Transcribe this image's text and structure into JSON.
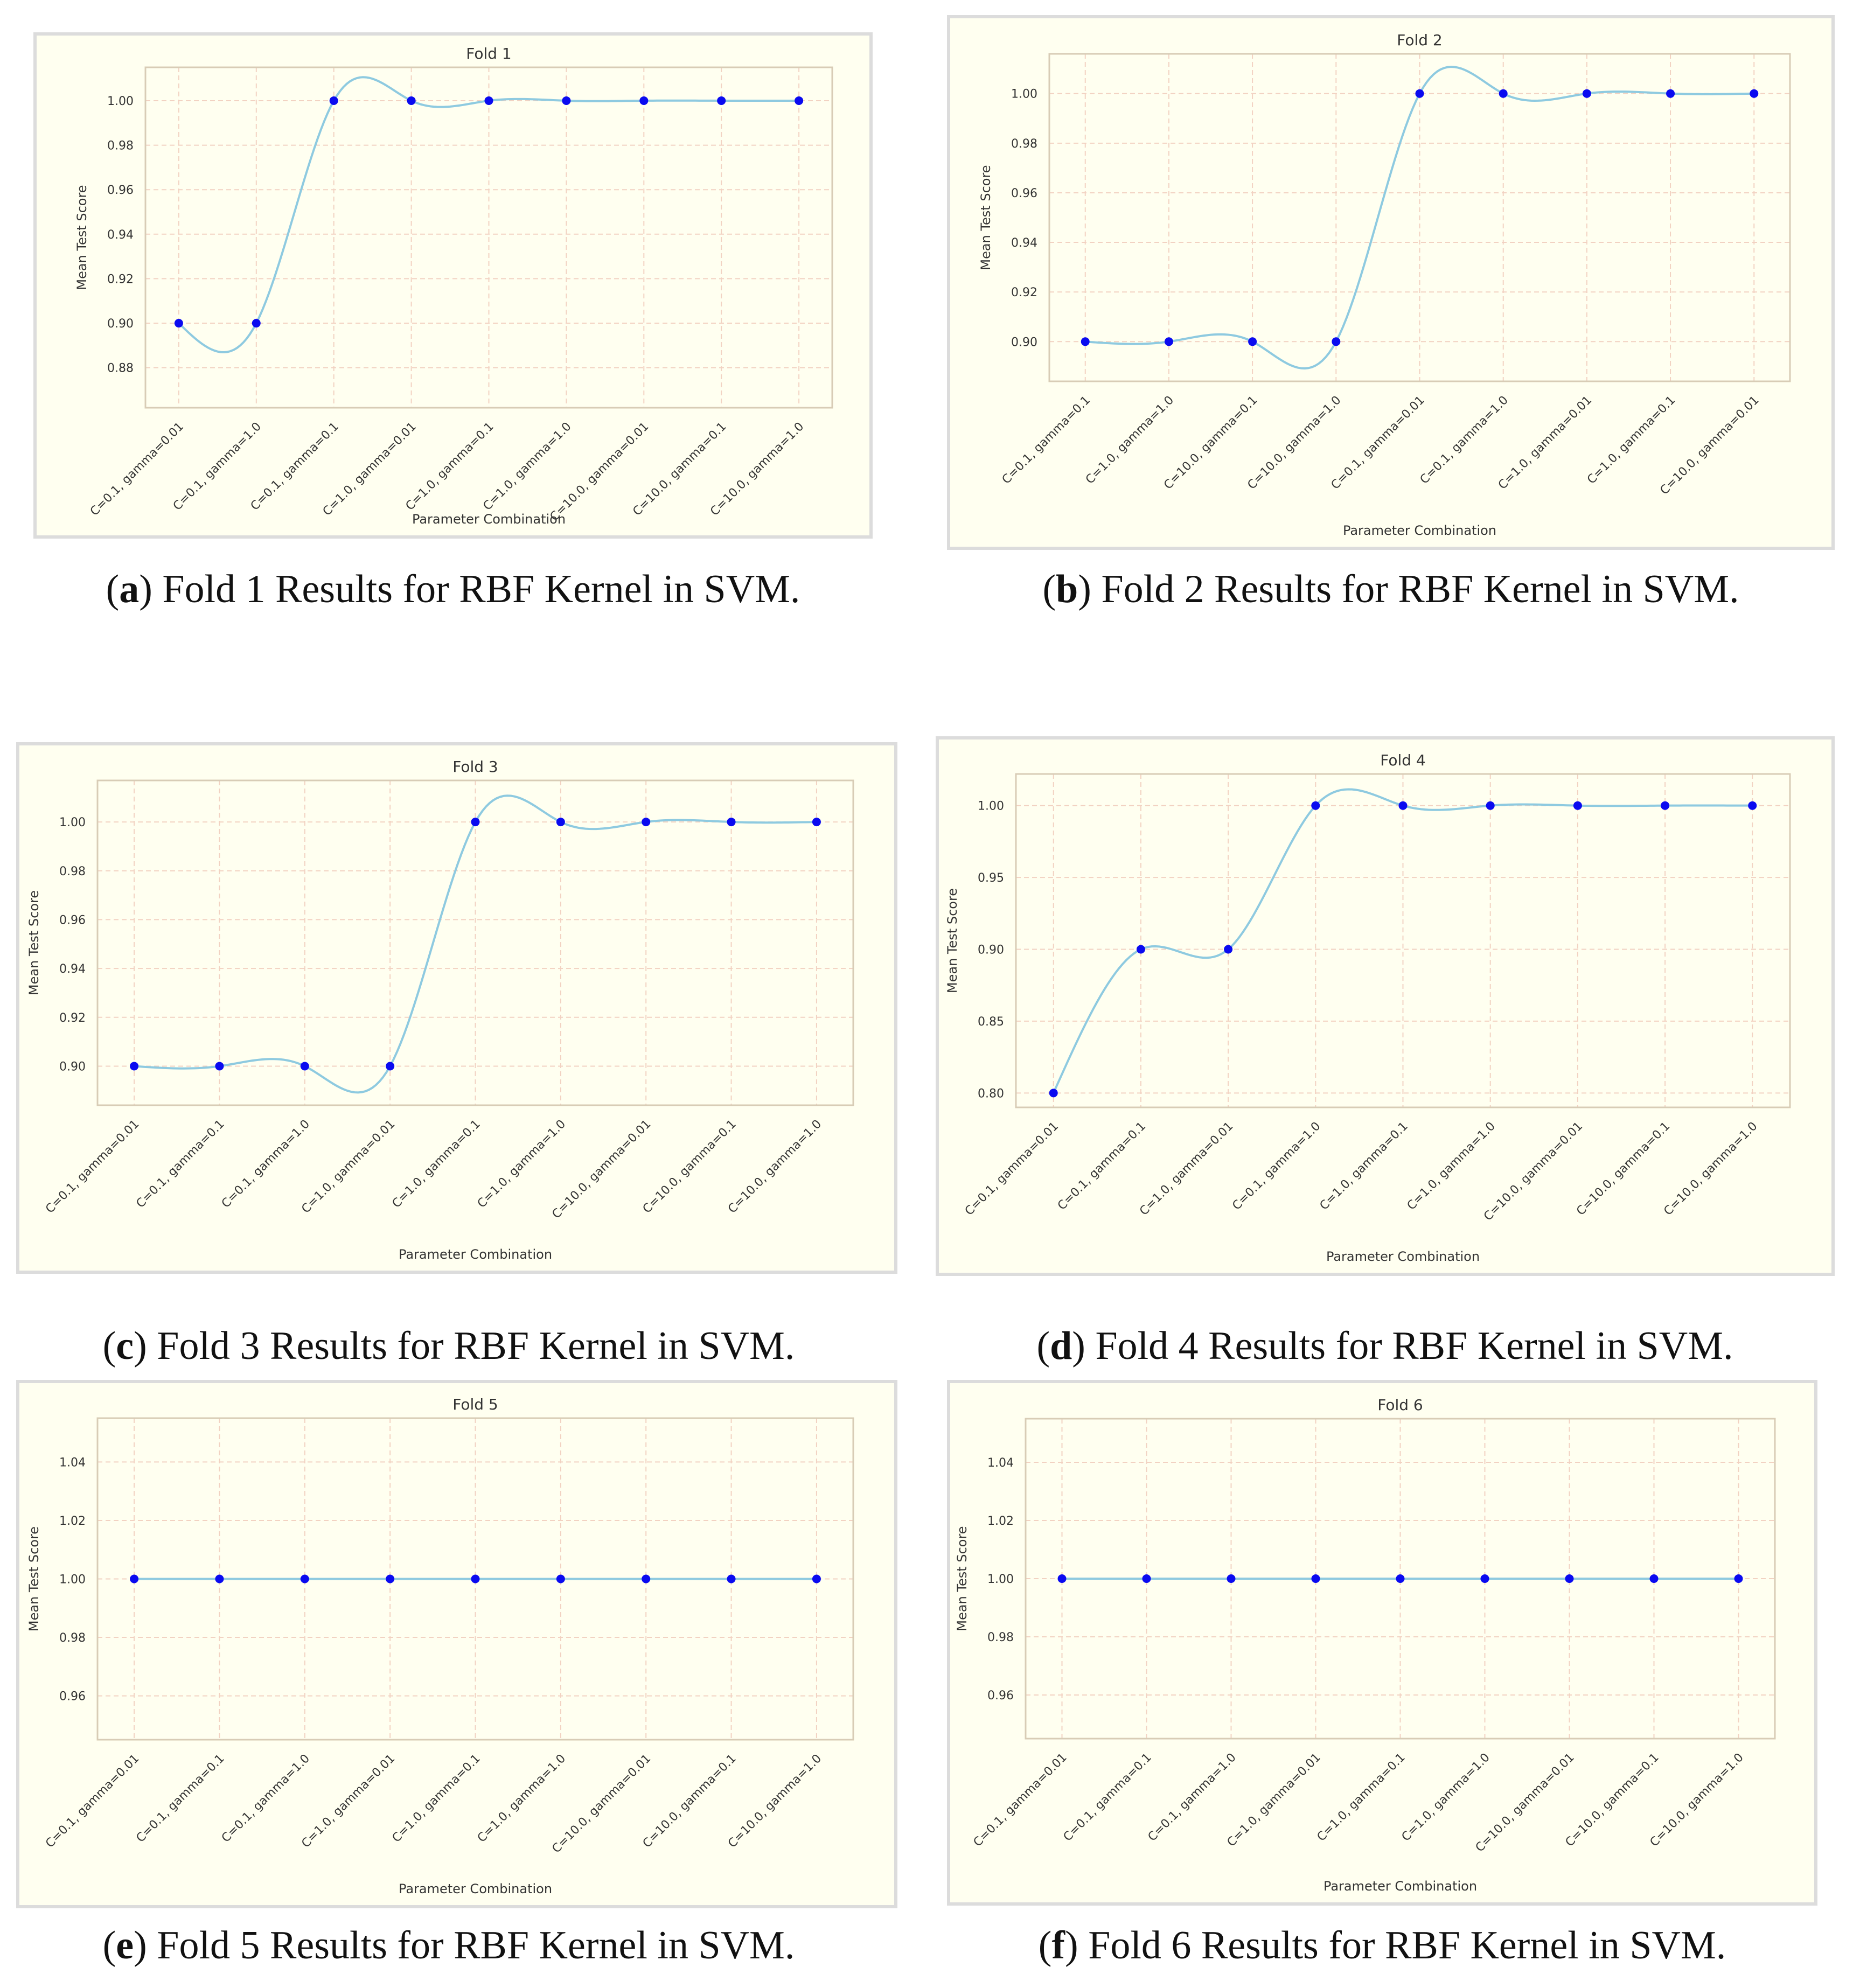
{
  "chart_data": [
    {
      "type": "line",
      "id": "a",
      "title": "Fold 1",
      "xlabel": "Parameter Combination",
      "ylabel": "Mean Test Score",
      "categories": [
        "C=0.1, gamma=0.01",
        "C=0.1, gamma=1.0",
        "C=0.1, gamma=0.1",
        "C=1.0, gamma=0.01",
        "C=1.0, gamma=0.1",
        "C=1.0, gamma=1.0",
        "C=10.0, gamma=0.01",
        "C=10.0, gamma=0.1",
        "C=10.0, gamma=1.0"
      ],
      "values": [
        0.9,
        0.9,
        1.0,
        1.0,
        1.0,
        1.0,
        1.0,
        1.0,
        1.0
      ],
      "ylim": [
        0.862,
        1.015
      ],
      "yticks": [
        0.88,
        0.9,
        0.92,
        0.94,
        0.96,
        0.98,
        1.0
      ],
      "ytick_labels": [
        "0.88",
        "0.90",
        "0.92",
        "0.94",
        "0.96",
        "0.98",
        "1.00"
      ],
      "grid": true,
      "caption_letter": "a",
      "caption_text": "Fold 1 Results for RBF Kernel in SVM."
    },
    {
      "type": "line",
      "id": "b",
      "title": "Fold 2",
      "xlabel": "Parameter Combination",
      "ylabel": "Mean Test Score",
      "categories": [
        "C=0.1, gamma=0.1",
        "C=1.0, gamma=1.0",
        "C=10.0, gamma=0.1",
        "C=10.0, gamma=1.0",
        "C=0.1, gamma=0.01",
        "C=0.1, gamma=1.0",
        "C=1.0, gamma=0.01",
        "C=1.0, gamma=0.1",
        "C=10.0, gamma=0.01"
      ],
      "values": [
        0.9,
        0.9,
        0.9,
        0.9,
        1.0,
        1.0,
        1.0,
        1.0,
        1.0
      ],
      "ylim": [
        0.884,
        1.016
      ],
      "yticks": [
        0.9,
        0.92,
        0.94,
        0.96,
        0.98,
        1.0
      ],
      "ytick_labels": [
        "0.90",
        "0.92",
        "0.94",
        "0.96",
        "0.98",
        "1.00"
      ],
      "grid": true,
      "caption_letter": "b",
      "caption_text": "Fold 2 Results for RBF Kernel in SVM."
    },
    {
      "type": "line",
      "id": "c",
      "title": "Fold 3",
      "xlabel": "Parameter Combination",
      "ylabel": "Mean Test Score",
      "categories": [
        "C=0.1, gamma=0.01",
        "C=0.1, gamma=0.1",
        "C=0.1, gamma=1.0",
        "C=1.0, gamma=0.01",
        "C=1.0, gamma=0.1",
        "C=1.0, gamma=1.0",
        "C=10.0, gamma=0.01",
        "C=10.0, gamma=0.1",
        "C=10.0, gamma=1.0"
      ],
      "values": [
        0.9,
        0.9,
        0.9,
        0.9,
        1.0,
        1.0,
        1.0,
        1.0,
        1.0
      ],
      "ylim": [
        0.884,
        1.017
      ],
      "yticks": [
        0.9,
        0.92,
        0.94,
        0.96,
        0.98,
        1.0
      ],
      "ytick_labels": [
        "0.90",
        "0.92",
        "0.94",
        "0.96",
        "0.98",
        "1.00"
      ],
      "grid": true,
      "caption_letter": "c",
      "caption_text": "Fold 3 Results for RBF Kernel in SVM."
    },
    {
      "type": "line",
      "id": "d",
      "title": "Fold 4",
      "xlabel": "Parameter Combination",
      "ylabel": "Mean Test Score",
      "categories": [
        "C=0.1, gamma=0.01",
        "C=0.1, gamma=0.1",
        "C=1.0, gamma=0.01",
        "C=0.1, gamma=1.0",
        "C=1.0, gamma=0.1",
        "C=1.0, gamma=1.0",
        "C=10.0, gamma=0.01",
        "C=10.0, gamma=0.1",
        "C=10.0, gamma=1.0"
      ],
      "values": [
        0.8,
        0.9,
        0.9,
        1.0,
        1.0,
        1.0,
        1.0,
        1.0,
        1.0
      ],
      "ylim": [
        0.79,
        1.022
      ],
      "yticks": [
        0.8,
        0.85,
        0.9,
        0.95,
        1.0
      ],
      "ytick_labels": [
        "0.80",
        "0.85",
        "0.90",
        "0.95",
        "1.00"
      ],
      "grid": true,
      "caption_letter": "d",
      "caption_text": "Fold 4 Results for RBF Kernel in SVM."
    },
    {
      "type": "line",
      "id": "e",
      "title": "Fold 5",
      "xlabel": "Parameter Combination",
      "ylabel": "Mean Test Score",
      "categories": [
        "C=0.1, gamma=0.01",
        "C=0.1, gamma=0.1",
        "C=0.1, gamma=1.0",
        "C=1.0, gamma=0.01",
        "C=1.0, gamma=0.1",
        "C=1.0, gamma=1.0",
        "C=10.0, gamma=0.01",
        "C=10.0, gamma=0.1",
        "C=10.0, gamma=1.0"
      ],
      "values": [
        1.0,
        1.0,
        1.0,
        1.0,
        1.0,
        1.0,
        1.0,
        1.0,
        1.0
      ],
      "ylim": [
        0.945,
        1.055
      ],
      "yticks": [
        0.96,
        0.98,
        1.0,
        1.02,
        1.04
      ],
      "ytick_labels": [
        "0.96",
        "0.98",
        "1.00",
        "1.02",
        "1.04"
      ],
      "grid": true,
      "caption_letter": "e",
      "caption_text": "Fold 5 Results for RBF Kernel in SVM."
    },
    {
      "type": "line",
      "id": "f",
      "title": "Fold 6",
      "xlabel": "Parameter Combination",
      "ylabel": "Mean Test Score",
      "categories": [
        "C=0.1, gamma=0.01",
        "C=0.1, gamma=0.1",
        "C=0.1, gamma=1.0",
        "C=1.0, gamma=0.01",
        "C=1.0, gamma=0.1",
        "C=1.0, gamma=1.0",
        "C=10.0, gamma=0.01",
        "C=10.0, gamma=0.1",
        "C=10.0, gamma=1.0"
      ],
      "values": [
        1.0,
        1.0,
        1.0,
        1.0,
        1.0,
        1.0,
        1.0,
        1.0,
        1.0
      ],
      "ylim": [
        0.945,
        1.055
      ],
      "yticks": [
        0.96,
        0.98,
        1.0,
        1.02,
        1.04
      ],
      "ytick_labels": [
        "0.96",
        "0.98",
        "1.00",
        "1.02",
        "1.04"
      ],
      "grid": true,
      "caption_letter": "f",
      "caption_text": "Fold 6 Results for RBF Kernel in SVM."
    }
  ],
  "colors": {
    "panel_background": "#fffff0",
    "panel_border": "#dcdcdc",
    "plot_frame": "#d8ccb6",
    "grid": "#f2d2c2",
    "line": "#8ecae0",
    "marker": "#0a0af0"
  }
}
